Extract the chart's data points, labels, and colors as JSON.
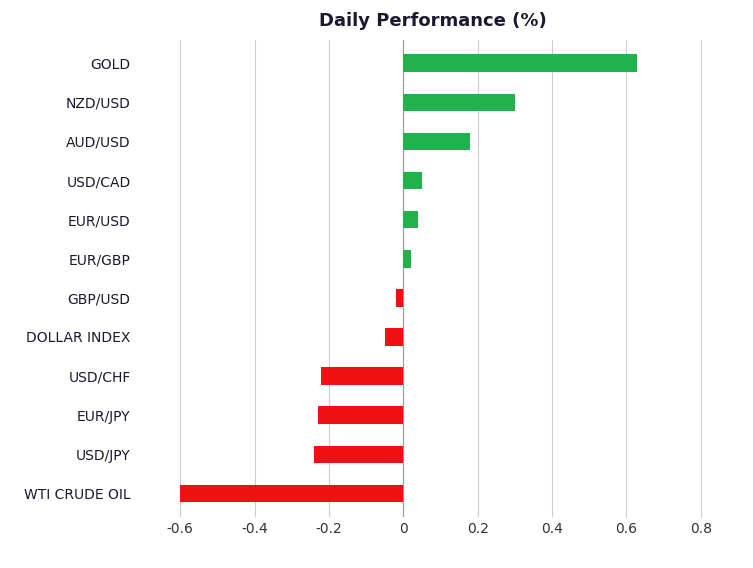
{
  "categories": [
    "WTI CRUDE OIL",
    "USD/JPY",
    "EUR/JPY",
    "USD/CHF",
    "DOLLAR INDEX",
    "GBP/USD",
    "EUR/GBP",
    "EUR/USD",
    "USD/CAD",
    "AUD/USD",
    "NZD/USD",
    "GOLD"
  ],
  "values": [
    -0.6,
    -0.24,
    -0.23,
    -0.22,
    -0.05,
    -0.02,
    0.02,
    0.04,
    0.05,
    0.18,
    0.3,
    0.63
  ],
  "positive_color": "#22b14c",
  "negative_color": "#ee1111",
  "title": "Daily Performance (%)",
  "title_fontsize": 13,
  "title_fontweight": "bold",
  "xlim": [
    -0.72,
    0.88
  ],
  "xticks": [
    -0.6,
    -0.4,
    -0.2,
    0.0,
    0.2,
    0.4,
    0.6,
    0.8
  ],
  "background_color": "#ffffff",
  "grid_color": "#cccccc",
  "label_color": "#1a1a2e",
  "tick_label_color": "#333333",
  "bar_height": 0.45,
  "label_fontsize": 10,
  "tick_fontsize": 10
}
